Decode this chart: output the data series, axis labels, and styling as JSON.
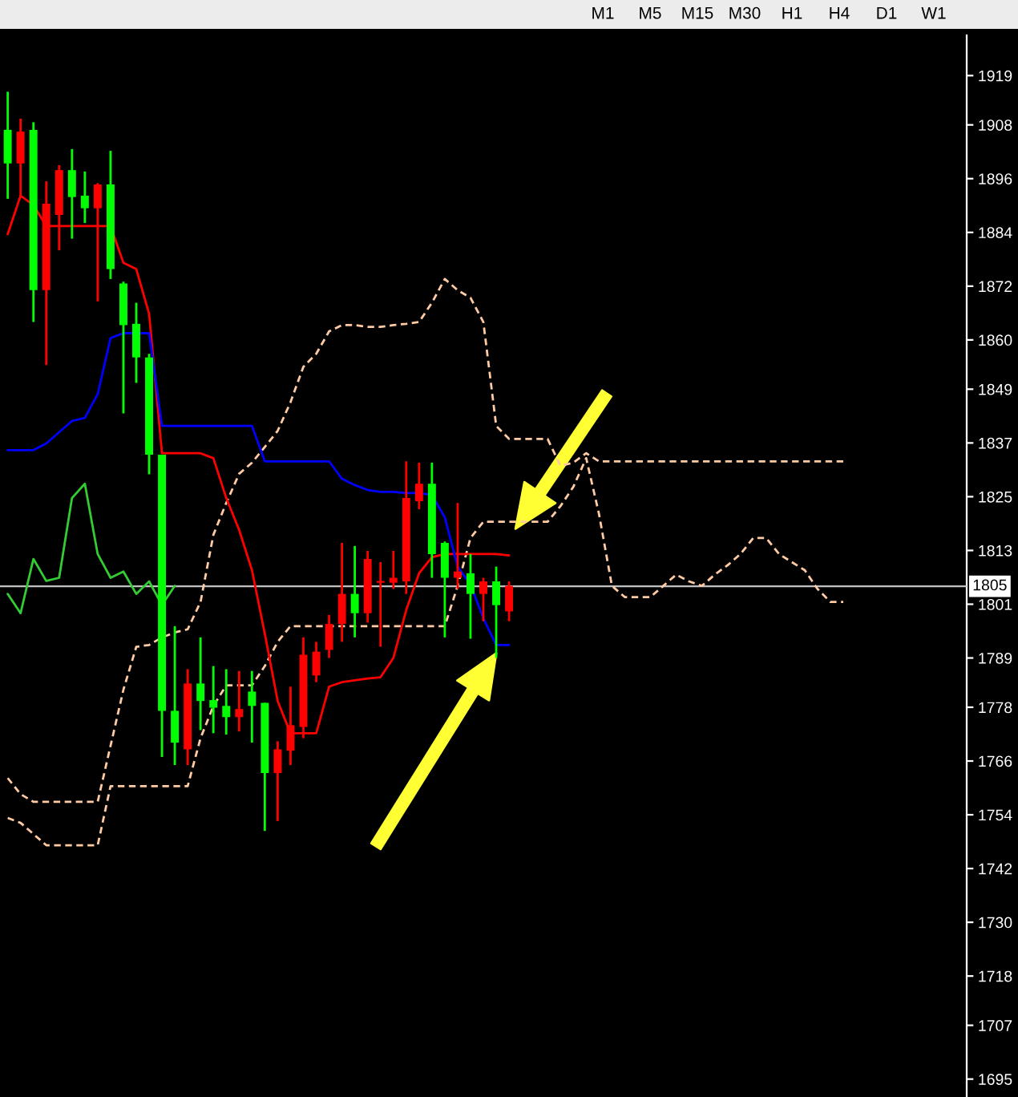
{
  "chart_data": {
    "type": "candlestick",
    "categories": [
      null,
      null,
      null,
      null,
      null,
      null,
      null,
      null,
      null,
      null,
      null,
      null,
      null,
      null,
      null,
      null,
      null,
      null,
      null,
      null,
      null,
      null,
      null,
      null,
      null,
      null,
      null,
      null,
      null,
      null,
      null,
      null,
      null,
      null,
      null,
      null,
      null,
      null,
      null,
      null,
      null,
      null,
      null,
      null,
      null,
      null,
      null,
      null,
      null,
      null,
      null,
      null,
      null,
      null,
      null,
      null,
      null,
      null,
      null,
      null,
      null,
      null,
      null,
      null,
      null,
      null
    ],
    "ohlc": [
      [
        1906.9,
        1915.4,
        1891.5,
        1899.4
      ],
      [
        1899.4,
        1909.4,
        1891.9,
        1906.5
      ],
      [
        1906.9,
        1908.6,
        1864.0,
        1871.1
      ],
      [
        1871.1,
        1895.4,
        1854.4,
        1890.4
      ],
      [
        1887.9,
        1899.0,
        1880.0,
        1897.9
      ],
      [
        1897.9,
        1902.6,
        1882.6,
        1891.9
      ],
      [
        1892.2,
        1897.6,
        1886.1,
        1889.4
      ],
      [
        1889.4,
        1895.0,
        1868.6,
        1894.7
      ],
      [
        1894.7,
        1902.2,
        1873.6,
        1875.8
      ],
      [
        1872.6,
        1873.0,
        1843.6,
        1863.3
      ],
      [
        1863.6,
        1868.3,
        1850.4,
        1856.1
      ],
      [
        1856.1,
        1856.9,
        1830.0,
        1834.4
      ],
      [
        1834.4,
        1834.4,
        1766.9,
        1777.2
      ],
      [
        1777.2,
        1796.1,
        1765.1,
        1770.1
      ],
      [
        1768.6,
        1786.5,
        1765.1,
        1783.3
      ],
      [
        1783.3,
        1793.6,
        1772.9,
        1779.4
      ],
      [
        1779.6,
        1787.2,
        1772.2,
        1777.9
      ],
      [
        1778.3,
        1786.5,
        1771.9,
        1775.8
      ],
      [
        1775.8,
        1786.1,
        1772.6,
        1777.6
      ],
      [
        1781.5,
        1786.1,
        1770.1,
        1778.3
      ],
      [
        1779.0,
        1779.0,
        1750.4,
        1763.3
      ],
      [
        1763.3,
        1770.4,
        1752.6,
        1768.6
      ],
      [
        1768.3,
        1782.6,
        1765.1,
        1774.0
      ],
      [
        1773.6,
        1793.6,
        1771.1,
        1789.7
      ],
      [
        1785.1,
        1792.6,
        1783.6,
        1790.4
      ],
      [
        1790.8,
        1798.6,
        1789.0,
        1796.6
      ],
      [
        1796.6,
        1814.7,
        1792.6,
        1803.3
      ],
      [
        1803.3,
        1814.0,
        1793.6,
        1799.0
      ],
      [
        1799.0,
        1812.9,
        1796.9,
        1811.1
      ],
      [
        1805.8,
        1810.4,
        1791.5,
        1806.2
      ],
      [
        1805.8,
        1812.9,
        1804.4,
        1806.9
      ],
      [
        1806.1,
        1832.9,
        1803.3,
        1824.7
      ],
      [
        1824.0,
        1832.6,
        1822.2,
        1827.9
      ],
      [
        1827.9,
        1832.6,
        1806.9,
        1812.2
      ],
      [
        1814.7,
        1815.0,
        1793.6,
        1806.9
      ],
      [
        1806.9,
        1823.6,
        1804.4,
        1808.3
      ],
      [
        1807.9,
        1812.2,
        1793.3,
        1803.3
      ],
      [
        1803.3,
        1806.9,
        1797.2,
        1806.1
      ],
      [
        1806.1,
        1809.4,
        1789.0,
        1800.8
      ],
      [
        1799.4,
        1806.1,
        1797.2,
        1805.1
      ],
      null,
      null,
      null,
      null,
      null,
      null,
      null,
      null,
      null,
      null,
      null,
      null,
      null,
      null,
      null,
      null,
      null,
      null,
      null,
      null,
      null,
      null,
      null,
      null,
      null,
      null
    ],
    "colors": [
      "#00ff00",
      "#ff0000",
      "#00ff00",
      "#ff0000",
      "#ff0000",
      "#00ff00",
      "#00ff00",
      "#ff0000",
      "#00ff00",
      "#00ff00",
      "#00ff00",
      "#00ff00",
      "#00ff00",
      "#00ff00",
      "#ff0000",
      "#00ff00",
      "#00ff00",
      "#00ff00",
      "#ff0000",
      "#00ff00",
      "#00ff00",
      "#ff0000",
      "#ff0000",
      "#ff0000",
      "#ff0000",
      "#ff0000",
      "#ff0000",
      "#00ff00",
      "#ff0000",
      "#ff0000",
      "#ff0000",
      "#ff0000",
      "#ff0000",
      "#00ff00",
      "#00ff00",
      "#ff0000",
      "#00ff00",
      "#ff0000",
      "#00ff00",
      "#ff0000",
      null,
      null,
      null,
      null,
      null,
      null,
      null,
      null,
      null,
      null,
      null,
      null,
      null,
      null,
      null,
      null,
      null,
      null,
      null,
      null,
      null,
      null,
      null,
      null,
      null,
      null
    ],
    "series": [
      {
        "type": "line",
        "color": "#ffcba4",
        "line_style": "dashed",
        "values": [
          1762.2,
          1758.6,
          1756.9,
          1756.9,
          1756.9,
          1756.9,
          1756.9,
          1756.9,
          1769.4,
          1781.9,
          1791.5,
          1791.9,
          1793.6,
          1794.7,
          1795.4,
          1801.5,
          1816.5,
          1823.6,
          1830.1,
          1832.6,
          1836.1,
          1839.7,
          1846.1,
          1854.0,
          1856.9,
          1861.9,
          1863.3,
          1863.3,
          1862.9,
          1862.9,
          1863.3,
          1863.6,
          1864.0,
          1868.3,
          1873.6,
          1871.1,
          1869.4,
          1864.0,
          1840.8,
          1837.9,
          1837.9,
          1837.9,
          1837.9,
          1831.9,
          1832.6,
          1834.7,
          1832.9,
          1832.9,
          1832.9,
          1832.9,
          1832.9,
          1832.9,
          1832.9,
          1832.9,
          1832.9,
          1832.9,
          1832.9,
          1832.9,
          1832.9,
          1832.9,
          1832.9,
          1832.9,
          1832.9,
          1832.9,
          1832.9,
          1832.9
        ]
      },
      {
        "type": "line",
        "color": "#ffcba4",
        "line_style": "dashed",
        "values": [
          1753.3,
          1752.2,
          1749.7,
          1747.2,
          1747.2,
          1747.2,
          1747.2,
          1747.2,
          1760.4,
          1760.4,
          1760.4,
          1760.4,
          1760.4,
          1760.4,
          1760.4,
          1771.1,
          1778.3,
          1782.9,
          1782.9,
          1782.9,
          1787.2,
          1792.6,
          1796.1,
          1796.1,
          1796.1,
          1796.1,
          1796.1,
          1796.1,
          1796.1,
          1796.1,
          1796.1,
          1796.1,
          1796.1,
          1796.1,
          1796.1,
          1805.1,
          1815.8,
          1819.4,
          1819.4,
          1819.4,
          1819.4,
          1819.4,
          1819.4,
          1822.9,
          1827.2,
          1833.6,
          1821.1,
          1805.1,
          1802.6,
          1802.6,
          1802.6,
          1805.1,
          1807.6,
          1806.1,
          1805.1,
          1807.6,
          1809.7,
          1812.2,
          1815.8,
          1815.8,
          1812.2,
          1810.4,
          1808.6,
          1804.4,
          1801.5,
          1801.5
        ]
      },
      {
        "type": "line",
        "color": "#ff0000",
        "line_style": "solid",
        "values": [
          1883.6,
          1892.2,
          1890.1,
          1885.4,
          1885.4,
          1885.4,
          1885.4,
          1885.4,
          1885.4,
          1877.2,
          1875.8,
          1865.8,
          1834.7,
          1834.7,
          1834.7,
          1834.7,
          1833.6,
          1824.7,
          1817.6,
          1808.6,
          1794.4,
          1779.4,
          1772.2,
          1772.2,
          1772.2,
          1782.6,
          1783.6,
          1784.0,
          1784.4,
          1784.7,
          1789.0,
          1799.7,
          1807.9,
          1811.5,
          1812.2,
          1812.2,
          1812.2,
          1812.2,
          1812.2,
          1811.9,
          null,
          null,
          null,
          null,
          null,
          null,
          null,
          null,
          null,
          null,
          null,
          null,
          null,
          null,
          null,
          null,
          null,
          null,
          null,
          null,
          null,
          null,
          null,
          null,
          null,
          null
        ]
      },
      {
        "type": "line",
        "color": "#0000ff",
        "line_style": "solid",
        "values": [
          1835.4,
          1835.4,
          1835.4,
          1836.9,
          1839.4,
          1841.9,
          1842.6,
          1847.9,
          1860.4,
          1861.5,
          1861.5,
          1861.5,
          1840.8,
          1840.8,
          1840.8,
          1840.8,
          1840.8,
          1840.8,
          1840.8,
          1840.8,
          1832.9,
          1832.9,
          1832.9,
          1832.9,
          1832.9,
          1832.9,
          1829.0,
          1827.6,
          1826.5,
          1826.1,
          1826.1,
          1825.8,
          1825.8,
          1825.4,
          1820.4,
          1809.4,
          1805.4,
          1797.9,
          1791.9,
          1791.9,
          null,
          null,
          null,
          null,
          null,
          null,
          null,
          null,
          null,
          null,
          null,
          null,
          null,
          null,
          null,
          null,
          null,
          null,
          null,
          null,
          null,
          null,
          null,
          null,
          null,
          null
        ]
      },
      {
        "type": "line",
        "color": "#33cc33",
        "line_style": "solid",
        "values": [
          1803.3,
          1799.0,
          1811.1,
          1806.2,
          1806.9,
          1824.7,
          1827.9,
          1812.2,
          1806.9,
          1808.3,
          1803.3,
          1806.1,
          1800.8,
          1805.1,
          null,
          null,
          null,
          null,
          null,
          null,
          null,
          null,
          null,
          null,
          null,
          null,
          null,
          null,
          null,
          null,
          null,
          null,
          null,
          null,
          null,
          null,
          null,
          null,
          null,
          null,
          null,
          null,
          null,
          null,
          null,
          null,
          null,
          null,
          null,
          null,
          null,
          null,
          null,
          null,
          null,
          null,
          null,
          null,
          null,
          null,
          null,
          null,
          null,
          null,
          null,
          null
        ]
      }
    ],
    "ylim": [
      1691,
      1928
    ],
    "yticks": [
      1919,
      1908,
      1896,
      1884,
      1872,
      1860,
      1849,
      1837,
      1825,
      1813,
      1801,
      1789,
      1778,
      1766,
      1754,
      1742,
      1730,
      1718,
      1707,
      1695
    ],
    "ref_lines": [
      {
        "axis": "y",
        "value": 1805,
        "label": "1805",
        "color": "#c0c0c0"
      }
    ],
    "annotations": [
      "M1",
      "M5",
      "M15",
      "M30",
      "H1",
      "H4",
      "D1",
      "W1"
    ],
    "tick_labels": "y"
  }
}
